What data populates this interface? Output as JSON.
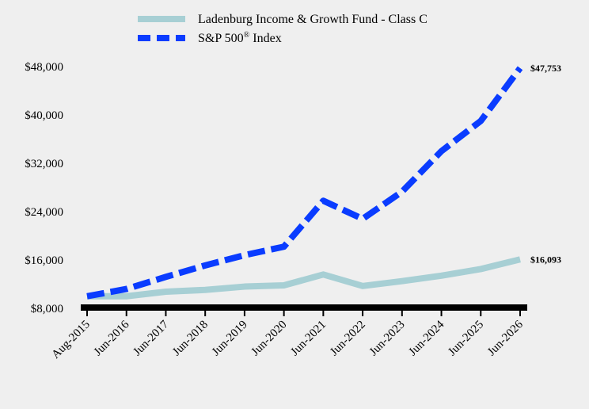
{
  "chart_data": {
    "type": "line",
    "categories": [
      "Aug-2015",
      "Jun-2016",
      "Jun-2017",
      "Jun-2018",
      "Jun-2019",
      "Jun-2020",
      "Jun-2021",
      "Jun-2022",
      "Jun-2023",
      "Jun-2024",
      "Jun-2025",
      "Jun-2026"
    ],
    "series": [
      {
        "name": "Ladenburg Income & Growth Fund - Class C",
        "values": [
          10000,
          10000,
          10750,
          11050,
          11600,
          11800,
          13600,
          11700,
          12500,
          13400,
          14500,
          16093
        ],
        "color": "#a7cfd4",
        "style": "solid",
        "end_label": "$16,093"
      },
      {
        "name": "S&P 500",
        "name_sup": "®",
        "name_suffix": " Index",
        "values": [
          10000,
          11200,
          13200,
          15100,
          16800,
          18200,
          25800,
          22800,
          27300,
          34000,
          39000,
          47753
        ],
        "color": "#0a3cff",
        "style": "dashed",
        "end_label": "$47,753"
      }
    ],
    "y_ticks": [
      8000,
      16000,
      24000,
      32000,
      40000,
      48000
    ],
    "y_tick_labels": [
      "$8,000",
      "$16,000",
      "$24,000",
      "$32,000",
      "$40,000",
      "$48,000"
    ],
    "ylim": [
      8000,
      48000
    ],
    "grid": false,
    "legend_position": "top"
  }
}
